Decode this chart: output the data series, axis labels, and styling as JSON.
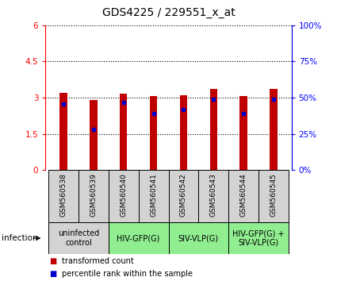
{
  "title": "GDS4225 / 229551_x_at",
  "samples": [
    "GSM560538",
    "GSM560539",
    "GSM560540",
    "GSM560541",
    "GSM560542",
    "GSM560543",
    "GSM560544",
    "GSM560545"
  ],
  "transformed_counts": [
    3.2,
    2.9,
    3.15,
    3.05,
    3.1,
    3.35,
    3.05,
    3.35
  ],
  "percentile_ranks": [
    2.75,
    1.7,
    2.8,
    2.35,
    2.5,
    2.95,
    2.35,
    2.95
  ],
  "ylim_left": [
    0,
    6
  ],
  "ylim_right": [
    0,
    100
  ],
  "yticks_left": [
    0,
    1.5,
    3,
    4.5,
    6
  ],
  "yticks_right": [
    0,
    25,
    50,
    75,
    100
  ],
  "ytick_labels_left": [
    "0",
    "1.5",
    "3",
    "4.5",
    "6"
  ],
  "ytick_labels_right": [
    "0%",
    "25%",
    "50%",
    "75%",
    "100%"
  ],
  "bar_color": "#C00000",
  "blue_marker_color": "#0000CC",
  "bar_width": 0.25,
  "groups": [
    {
      "label": "uninfected\ncontrol",
      "start": 0,
      "end": 2,
      "color": "#d3d3d3"
    },
    {
      "label": "HIV-GFP(G)",
      "start": 2,
      "end": 4,
      "color": "#90EE90"
    },
    {
      "label": "SIV-VLP(G)",
      "start": 4,
      "end": 6,
      "color": "#90EE90"
    },
    {
      "label": "HIV-GFP(G) +\nSIV-VLP(G)",
      "start": 6,
      "end": 8,
      "color": "#90EE90"
    }
  ],
  "infection_label": "infection",
  "legend_items": [
    {
      "label": "transformed count",
      "color": "#C00000"
    },
    {
      "label": "percentile rank within the sample",
      "color": "#0000CC"
    }
  ],
  "title_fontsize": 10,
  "tick_fontsize": 7.5,
  "label_fontsize": 7.5,
  "sample_bg_color": "#d3d3d3"
}
